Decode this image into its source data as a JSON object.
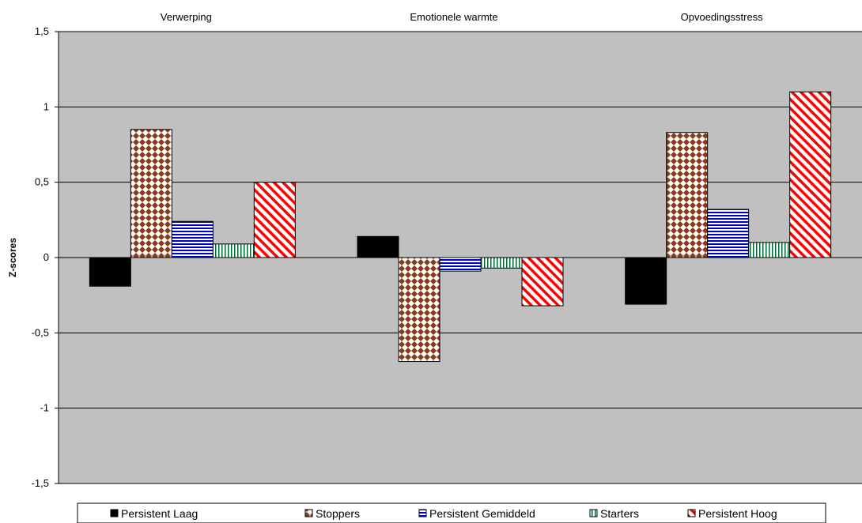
{
  "chart_data": {
    "type": "bar",
    "categories": [
      "Verwerping",
      "Emotionele warmte",
      "Opvoedingsstress"
    ],
    "ylabel": "Z-scores",
    "xlabel": "",
    "ylim": [
      -1.5,
      1.5
    ],
    "yticks": [
      1.5,
      1,
      0.5,
      0,
      -0.5,
      -1,
      -1.5
    ],
    "ytick_labels": [
      "1,5",
      "1",
      "0,5",
      "0",
      "-0,5",
      "-1",
      "-1,5"
    ],
    "grid": true,
    "legend_position": "bottom",
    "plot_background": "#c0c0c0",
    "series": [
      {
        "name": "Persistent Laag",
        "values": [
          -0.19,
          0.14,
          -0.31
        ],
        "color": "#000000",
        "pattern": "solid"
      },
      {
        "name": "Stoppers",
        "values": [
          0.85,
          -0.69,
          0.83
        ],
        "color": "#8b3a1a",
        "pattern": "diamond-check"
      },
      {
        "name": "Persistent Gemiddeld",
        "values": [
          0.24,
          -0.09,
          0.32
        ],
        "color": "#0000cc",
        "pattern": "horizontal-lines"
      },
      {
        "name": "Starters",
        "values": [
          0.09,
          -0.07,
          0.1
        ],
        "color": "#006633",
        "pattern": "vertical-lines"
      },
      {
        "name": "Persistent Hoog",
        "values": [
          0.5,
          -0.32,
          1.1
        ],
        "color": "#ff0000",
        "pattern": "diagonal-lines"
      }
    ]
  }
}
